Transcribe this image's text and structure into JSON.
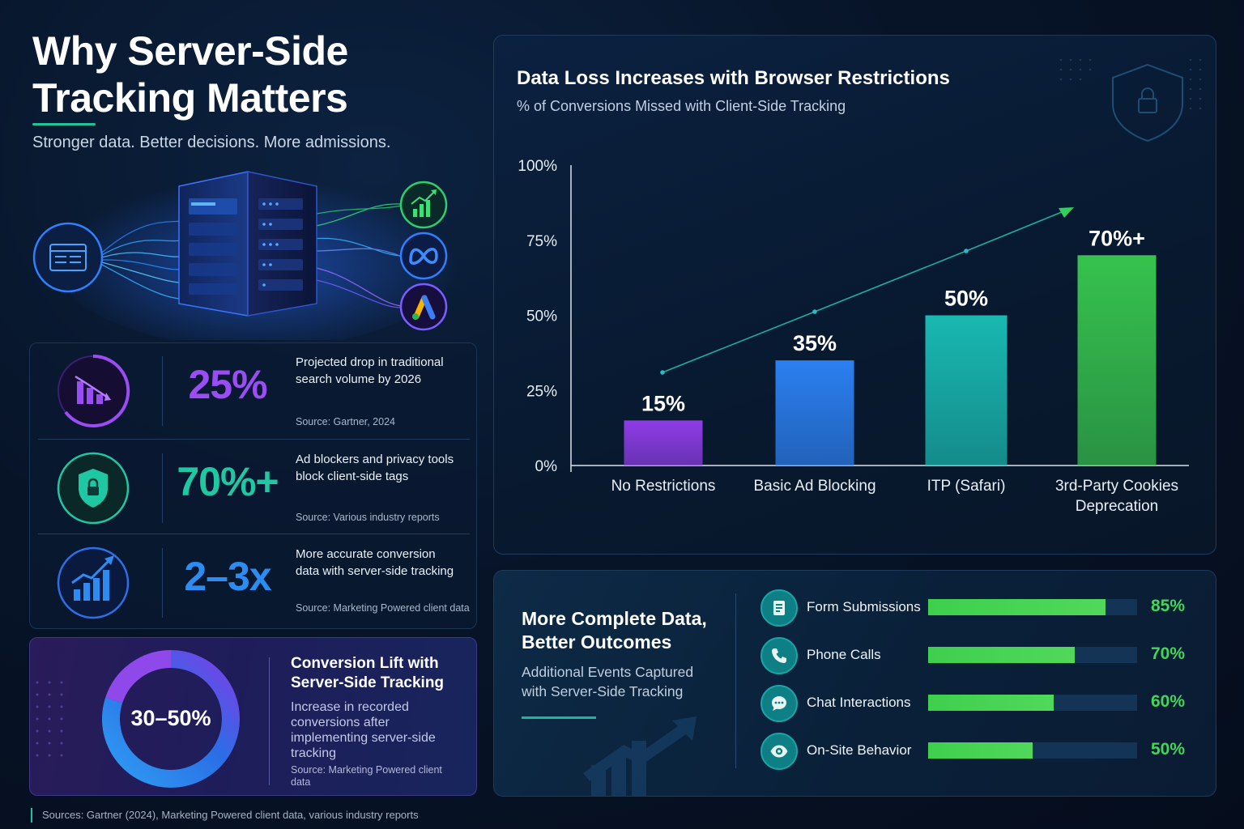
{
  "header": {
    "title_line1": "Why Server-Side",
    "title_line2": "Tracking Matters",
    "subtitle": "Stronger data. Better decisions. More admissions."
  },
  "stats": [
    {
      "value": "25%",
      "color": "#9a4df2",
      "description": "Projected drop in traditional search volume by 2026",
      "source": "Source: Gartner, 2024",
      "icon": "declining-bar-chart-icon"
    },
    {
      "value": "70%+",
      "color": "#1fc7a3",
      "description": "Ad blockers and privacy tools block client-side tags",
      "source": "Source: Various industry reports",
      "icon": "shield-lock-icon"
    },
    {
      "value": "2–3x",
      "color": "#2c8cf2",
      "description": "More accurate conversion data with server-side tracking",
      "source": "Source: Marketing Powered client data",
      "icon": "growth-chart-icon"
    }
  ],
  "conversion_lift": {
    "value": "30–50%",
    "title": "Conversion Lift with Server-Side Tracking",
    "description": "Increase in recorded conversions after implementing server-side tracking",
    "source": "Source: Marketing Powered client data"
  },
  "footer": {
    "sources": "Sources: Gartner (2024), Marketing Powered client data, various industry reports"
  },
  "chart_data": [
    {
      "type": "bar",
      "title": "Data Loss Increases with Browser Restrictions",
      "subtitle": "% of Conversions Missed with Client-Side Tracking",
      "categories": [
        "No Restrictions",
        "Basic Ad Blocking",
        "ITP (Safari)",
        "3rd-Party Cookies Deprecation"
      ],
      "values": [
        15,
        35,
        50,
        70
      ],
      "data_labels": [
        "15%",
        "35%",
        "50%",
        "70%+"
      ],
      "y_ticks": [
        "0%",
        "25%",
        "50%",
        "75%",
        "100%"
      ],
      "ylim": [
        0,
        100
      ],
      "grid": false,
      "trend_arrow": true,
      "colors": [
        "#8e3ce6",
        "#2b7ff0",
        "#19b8b0",
        "#36c24d"
      ]
    },
    {
      "type": "bar",
      "orientation": "horizontal",
      "title": "More Complete Data, Better Outcomes",
      "subtitle": "Additional Events Captured with Server-Side Tracking",
      "categories": [
        "Form Submissions",
        "Phone Calls",
        "Chat Interactions",
        "On-Site Behavior"
      ],
      "values": [
        85,
        70,
        60,
        50
      ],
      "data_labels": [
        "85%",
        "70%",
        "60%",
        "50%"
      ],
      "icons": [
        "form-icon",
        "phone-icon",
        "chat-icon",
        "eye-icon"
      ],
      "xlim": [
        0,
        100
      ],
      "color": "#43d55a"
    }
  ]
}
